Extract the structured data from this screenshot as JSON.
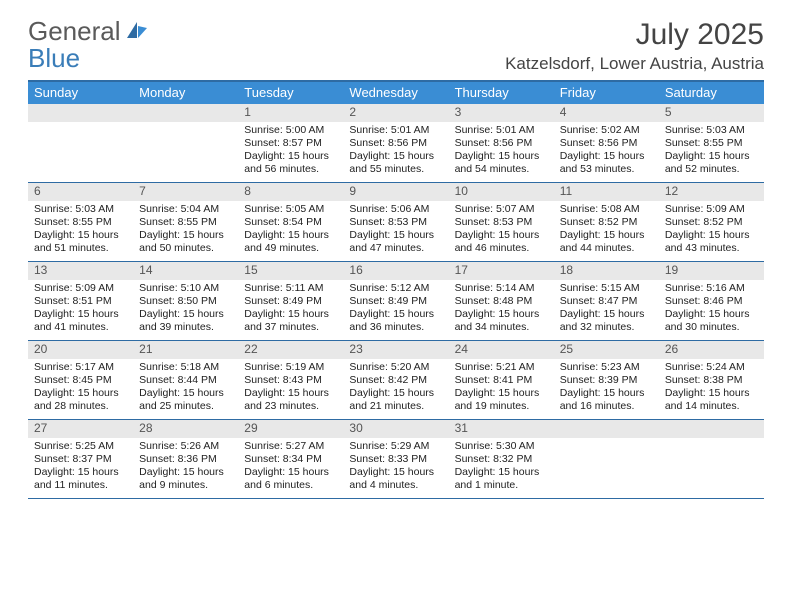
{
  "brand": {
    "general": "General",
    "blue": "Blue"
  },
  "title": "July 2025",
  "location": "Katzelsdorf, Lower Austria, Austria",
  "colors": {
    "header_bg": "#3a8dd4",
    "header_text": "#ffffff",
    "border": "#2e6ba3",
    "daynum_bg": "#e8e8e8",
    "brand_blue": "#3a7db8",
    "brand_gray": "#5a5a5a"
  },
  "day_labels": [
    "Sunday",
    "Monday",
    "Tuesday",
    "Wednesday",
    "Thursday",
    "Friday",
    "Saturday"
  ],
  "weeks": [
    [
      {
        "n": "",
        "sunrise": "",
        "sunset": "",
        "daylight": ""
      },
      {
        "n": "",
        "sunrise": "",
        "sunset": "",
        "daylight": ""
      },
      {
        "n": "1",
        "sunrise": "Sunrise: 5:00 AM",
        "sunset": "Sunset: 8:57 PM",
        "daylight": "Daylight: 15 hours and 56 minutes."
      },
      {
        "n": "2",
        "sunrise": "Sunrise: 5:01 AM",
        "sunset": "Sunset: 8:56 PM",
        "daylight": "Daylight: 15 hours and 55 minutes."
      },
      {
        "n": "3",
        "sunrise": "Sunrise: 5:01 AM",
        "sunset": "Sunset: 8:56 PM",
        "daylight": "Daylight: 15 hours and 54 minutes."
      },
      {
        "n": "4",
        "sunrise": "Sunrise: 5:02 AM",
        "sunset": "Sunset: 8:56 PM",
        "daylight": "Daylight: 15 hours and 53 minutes."
      },
      {
        "n": "5",
        "sunrise": "Sunrise: 5:03 AM",
        "sunset": "Sunset: 8:55 PM",
        "daylight": "Daylight: 15 hours and 52 minutes."
      }
    ],
    [
      {
        "n": "6",
        "sunrise": "Sunrise: 5:03 AM",
        "sunset": "Sunset: 8:55 PM",
        "daylight": "Daylight: 15 hours and 51 minutes."
      },
      {
        "n": "7",
        "sunrise": "Sunrise: 5:04 AM",
        "sunset": "Sunset: 8:55 PM",
        "daylight": "Daylight: 15 hours and 50 minutes."
      },
      {
        "n": "8",
        "sunrise": "Sunrise: 5:05 AM",
        "sunset": "Sunset: 8:54 PM",
        "daylight": "Daylight: 15 hours and 49 minutes."
      },
      {
        "n": "9",
        "sunrise": "Sunrise: 5:06 AM",
        "sunset": "Sunset: 8:53 PM",
        "daylight": "Daylight: 15 hours and 47 minutes."
      },
      {
        "n": "10",
        "sunrise": "Sunrise: 5:07 AM",
        "sunset": "Sunset: 8:53 PM",
        "daylight": "Daylight: 15 hours and 46 minutes."
      },
      {
        "n": "11",
        "sunrise": "Sunrise: 5:08 AM",
        "sunset": "Sunset: 8:52 PM",
        "daylight": "Daylight: 15 hours and 44 minutes."
      },
      {
        "n": "12",
        "sunrise": "Sunrise: 5:09 AM",
        "sunset": "Sunset: 8:52 PM",
        "daylight": "Daylight: 15 hours and 43 minutes."
      }
    ],
    [
      {
        "n": "13",
        "sunrise": "Sunrise: 5:09 AM",
        "sunset": "Sunset: 8:51 PM",
        "daylight": "Daylight: 15 hours and 41 minutes."
      },
      {
        "n": "14",
        "sunrise": "Sunrise: 5:10 AM",
        "sunset": "Sunset: 8:50 PM",
        "daylight": "Daylight: 15 hours and 39 minutes."
      },
      {
        "n": "15",
        "sunrise": "Sunrise: 5:11 AM",
        "sunset": "Sunset: 8:49 PM",
        "daylight": "Daylight: 15 hours and 37 minutes."
      },
      {
        "n": "16",
        "sunrise": "Sunrise: 5:12 AM",
        "sunset": "Sunset: 8:49 PM",
        "daylight": "Daylight: 15 hours and 36 minutes."
      },
      {
        "n": "17",
        "sunrise": "Sunrise: 5:14 AM",
        "sunset": "Sunset: 8:48 PM",
        "daylight": "Daylight: 15 hours and 34 minutes."
      },
      {
        "n": "18",
        "sunrise": "Sunrise: 5:15 AM",
        "sunset": "Sunset: 8:47 PM",
        "daylight": "Daylight: 15 hours and 32 minutes."
      },
      {
        "n": "19",
        "sunrise": "Sunrise: 5:16 AM",
        "sunset": "Sunset: 8:46 PM",
        "daylight": "Daylight: 15 hours and 30 minutes."
      }
    ],
    [
      {
        "n": "20",
        "sunrise": "Sunrise: 5:17 AM",
        "sunset": "Sunset: 8:45 PM",
        "daylight": "Daylight: 15 hours and 28 minutes."
      },
      {
        "n": "21",
        "sunrise": "Sunrise: 5:18 AM",
        "sunset": "Sunset: 8:44 PM",
        "daylight": "Daylight: 15 hours and 25 minutes."
      },
      {
        "n": "22",
        "sunrise": "Sunrise: 5:19 AM",
        "sunset": "Sunset: 8:43 PM",
        "daylight": "Daylight: 15 hours and 23 minutes."
      },
      {
        "n": "23",
        "sunrise": "Sunrise: 5:20 AM",
        "sunset": "Sunset: 8:42 PM",
        "daylight": "Daylight: 15 hours and 21 minutes."
      },
      {
        "n": "24",
        "sunrise": "Sunrise: 5:21 AM",
        "sunset": "Sunset: 8:41 PM",
        "daylight": "Daylight: 15 hours and 19 minutes."
      },
      {
        "n": "25",
        "sunrise": "Sunrise: 5:23 AM",
        "sunset": "Sunset: 8:39 PM",
        "daylight": "Daylight: 15 hours and 16 minutes."
      },
      {
        "n": "26",
        "sunrise": "Sunrise: 5:24 AM",
        "sunset": "Sunset: 8:38 PM",
        "daylight": "Daylight: 15 hours and 14 minutes."
      }
    ],
    [
      {
        "n": "27",
        "sunrise": "Sunrise: 5:25 AM",
        "sunset": "Sunset: 8:37 PM",
        "daylight": "Daylight: 15 hours and 11 minutes."
      },
      {
        "n": "28",
        "sunrise": "Sunrise: 5:26 AM",
        "sunset": "Sunset: 8:36 PM",
        "daylight": "Daylight: 15 hours and 9 minutes."
      },
      {
        "n": "29",
        "sunrise": "Sunrise: 5:27 AM",
        "sunset": "Sunset: 8:34 PM",
        "daylight": "Daylight: 15 hours and 6 minutes."
      },
      {
        "n": "30",
        "sunrise": "Sunrise: 5:29 AM",
        "sunset": "Sunset: 8:33 PM",
        "daylight": "Daylight: 15 hours and 4 minutes."
      },
      {
        "n": "31",
        "sunrise": "Sunrise: 5:30 AM",
        "sunset": "Sunset: 8:32 PM",
        "daylight": "Daylight: 15 hours and 1 minute."
      },
      {
        "n": "",
        "sunrise": "",
        "sunset": "",
        "daylight": ""
      },
      {
        "n": "",
        "sunrise": "",
        "sunset": "",
        "daylight": ""
      }
    ]
  ]
}
